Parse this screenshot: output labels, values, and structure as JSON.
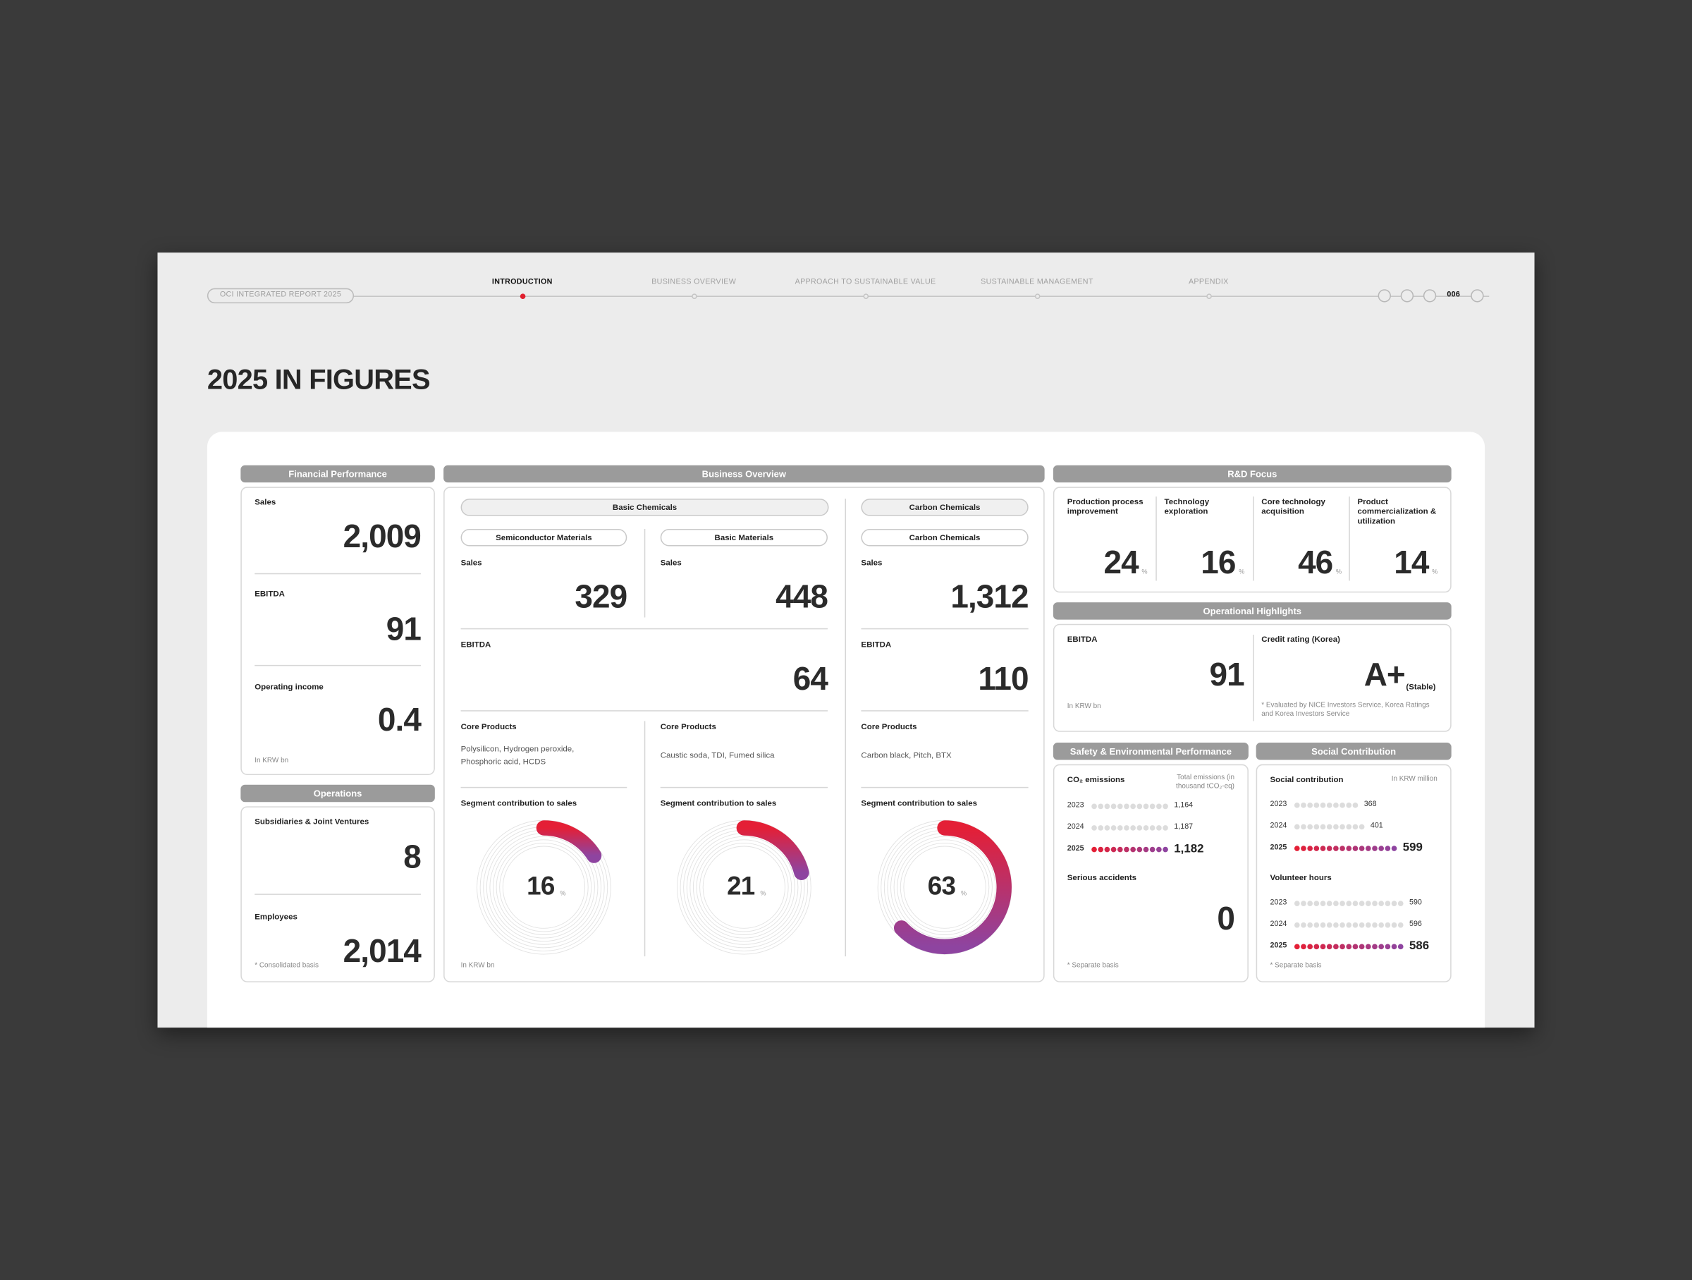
{
  "header": {
    "report_title": "OCI INTEGRATED REPORT 2025",
    "nav": [
      "INTRODUCTION",
      "BUSINESS OVERVIEW",
      "APPROACH TO SUSTAINABLE VALUE",
      "SUSTAINABLE MANAGEMENT",
      "APPENDIX"
    ],
    "page_number": "006"
  },
  "title": "2025 IN FIGURES",
  "financial_performance": {
    "header": "Financial Performance",
    "items": [
      {
        "label": "Sales",
        "value": "2,009"
      },
      {
        "label": "EBITDA",
        "value": "91"
      },
      {
        "label": "Operating income",
        "value": "0.4"
      }
    ],
    "note": "In KRW bn"
  },
  "operations": {
    "header": "Operations",
    "items": [
      {
        "label": "Subsidiaries & Joint Ventures",
        "value": "8"
      },
      {
        "label": "Employees",
        "value": "2,014"
      }
    ],
    "note": "* Consolidated basis"
  },
  "business_overview": {
    "header": "Business Overview",
    "divisions": [
      {
        "name": "Basic Chemicals",
        "ebitda_label": "EBITDA",
        "ebitda": "64"
      },
      {
        "name": "Carbon Chemicals",
        "ebitda_label": "EBITDA",
        "ebitda": "110"
      }
    ],
    "segments": [
      {
        "name": "Semiconductor Materials",
        "sales_label": "Sales",
        "sales": "329",
        "core_label": "Core Products",
        "core_products": "Polysilicon, Hydrogen peroxide, Phosphoric acid, HCDS",
        "contribution_label": "Segment contribution to sales",
        "contribution": 16,
        "contribution_unit": "%"
      },
      {
        "name": "Basic Materials",
        "sales_label": "Sales",
        "sales": "448",
        "core_label": "Core Products",
        "core_products": "Caustic soda, TDI, Fumed silica",
        "contribution_label": "Segment contribution to sales",
        "contribution": 21,
        "contribution_unit": "%"
      },
      {
        "name": "Carbon Chemicals",
        "sales_label": "Sales",
        "sales": "1,312",
        "core_label": "Core Products",
        "core_products": "Carbon black, Pitch, BTX",
        "contribution_label": "Segment contribution to sales",
        "contribution": 63,
        "contribution_unit": "%"
      }
    ],
    "note": "In KRW bn"
  },
  "rd_focus": {
    "header": "R&D Focus",
    "items": [
      {
        "label": "Production process improvement",
        "value": "24"
      },
      {
        "label": "Technology exploration",
        "value": "16"
      },
      {
        "label": "Core technology acquisition",
        "value": "46"
      },
      {
        "label": "Product commercialization & utilization",
        "value": "14"
      }
    ],
    "unit": "%"
  },
  "operational_highlights": {
    "header": "Operational Highlights",
    "ebitda": {
      "label": "EBITDA",
      "value": "91",
      "note": "In KRW bn"
    },
    "credit_rating": {
      "label": "Credit rating (Korea)",
      "value": "A+",
      "outlook": "(Stable)",
      "note": "* Evaluated by NICE Investors Service, Korea Ratings and Korea Investors Service"
    }
  },
  "safety_environment": {
    "header": "Safety & Environmental Performance",
    "co2": {
      "label": "CO₂ emissions",
      "unit": "Total emissions (in thousand tCO₂-eq)",
      "years": [
        "2023",
        "2024",
        "2025"
      ],
      "values": [
        1164,
        1187,
        1182
      ],
      "value_labels": [
        "1,164",
        "1,187",
        "1,182"
      ]
    },
    "accidents": {
      "label": "Serious accidents",
      "value": "0"
    },
    "note": "* Separate basis"
  },
  "social_contribution": {
    "header": "Social Contribution",
    "contribution": {
      "label": "Social contribution",
      "unit": "In KRW million",
      "years": [
        "2023",
        "2024",
        "2025"
      ],
      "values": [
        368,
        401,
        599
      ]
    },
    "volunteer": {
      "label": "Volunteer hours",
      "years": [
        "2023",
        "2024",
        "2025"
      ],
      "values": [
        590,
        596,
        586
      ]
    },
    "note": "* Separate basis"
  }
}
